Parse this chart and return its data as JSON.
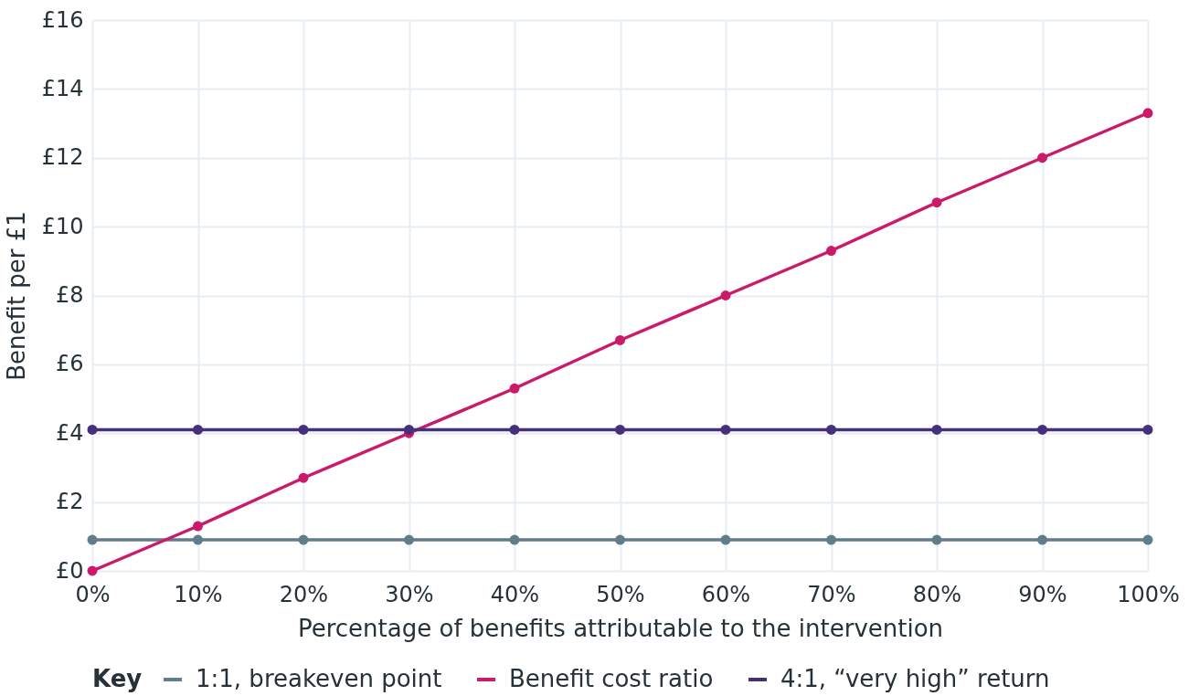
{
  "chart_data": {
    "type": "line",
    "xlabel": "Percentage of benefits attributable to the intervention",
    "ylabel": "Benefit per £1",
    "legend_title": "Key",
    "x": [
      0,
      10,
      20,
      30,
      40,
      50,
      60,
      70,
      80,
      90,
      100
    ],
    "series": [
      {
        "name": "1:1, breakeven point",
        "color": "#607d8b",
        "values": [
          0.9,
          0.9,
          0.9,
          0.9,
          0.9,
          0.9,
          0.9,
          0.9,
          0.9,
          0.9,
          0.9
        ]
      },
      {
        "name": "Benefit cost ratio",
        "color": "#cc1a6a",
        "values": [
          0,
          1.3,
          2.7,
          4,
          5.3,
          6.7,
          8,
          9.3,
          10.7,
          12,
          13.3
        ]
      },
      {
        "name": "4:1, “very high” return",
        "color": "#44317a",
        "values": [
          4.1,
          4.1,
          4.1,
          4.1,
          4.1,
          4.1,
          4.1,
          4.1,
          4.1,
          4.1,
          4.1
        ]
      }
    ],
    "xlim": [
      0,
      100
    ],
    "xticks": [
      {
        "value": 0,
        "label": "0%"
      },
      {
        "value": 10,
        "label": "10%"
      },
      {
        "value": 20,
        "label": "20%"
      },
      {
        "value": 30,
        "label": "30%"
      },
      {
        "value": 40,
        "label": "40%"
      },
      {
        "value": 50,
        "label": "50%"
      },
      {
        "value": 60,
        "label": "60%"
      },
      {
        "value": 70,
        "label": "70%"
      },
      {
        "value": 80,
        "label": "80%"
      },
      {
        "value": 90,
        "label": "90%"
      },
      {
        "value": 100,
        "label": "100%"
      }
    ],
    "ylim": [
      0,
      16
    ],
    "yticks": [
      {
        "value": 0,
        "label": "£0"
      },
      {
        "value": 2,
        "label": "£2"
      },
      {
        "value": 4,
        "label": "£4"
      },
      {
        "value": 6,
        "label": "£6"
      },
      {
        "value": 8,
        "label": "£8"
      },
      {
        "value": 10,
        "label": "£10"
      },
      {
        "value": 12,
        "label": "£12"
      },
      {
        "value": 14,
        "label": "£14"
      },
      {
        "value": 16,
        "label": "£16"
      }
    ],
    "grid": true,
    "legend": "bottom",
    "marker": "circle",
    "line_style": "solid"
  }
}
